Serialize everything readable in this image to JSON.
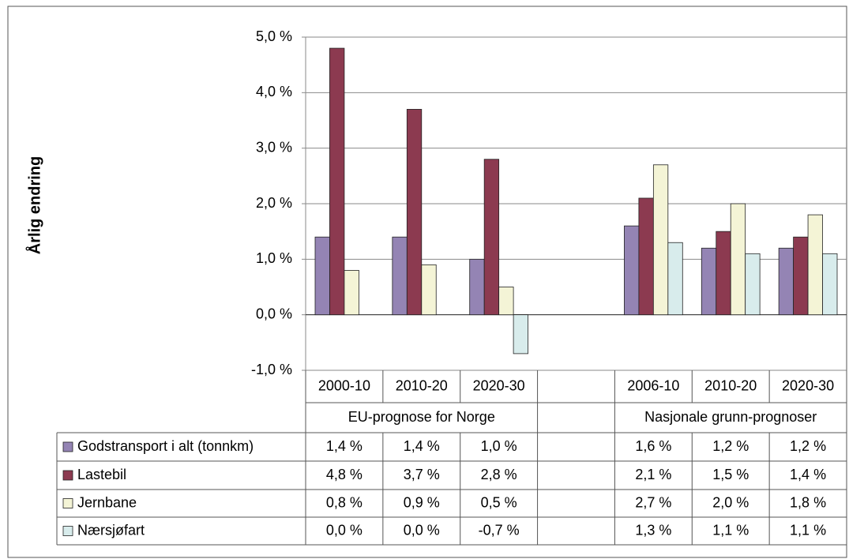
{
  "chart_data": {
    "type": "bar",
    "y_label": "Årlig endring",
    "categories": [
      "2000-10",
      "2010-20",
      "2020-30",
      null,
      "2006-10",
      "2010-20",
      "2020-30"
    ],
    "groups": [
      "EU-prognose for Norge",
      "Nasjonale grunn-prognoser"
    ],
    "ylim": [
      -1,
      5
    ],
    "yticks": [
      {
        "value": -1,
        "label": "-1,0 %"
      },
      {
        "value": 0,
        "label": "0,0 %"
      },
      {
        "value": 1,
        "label": "1,0 %"
      },
      {
        "value": 2,
        "label": "2,0 %"
      },
      {
        "value": 3,
        "label": "3,0 %"
      },
      {
        "value": 4,
        "label": "4,0 %"
      },
      {
        "value": 5,
        "label": "5,0 %"
      }
    ],
    "grid": true,
    "series": [
      {
        "name": "Godstransport i alt (tonnkm)",
        "color": "#9484b4",
        "values": [
          1.4,
          1.4,
          1.0,
          null,
          1.6,
          1.2,
          1.2
        ],
        "value_labels": [
          "1,4 %",
          "1,4 %",
          "1,0 %",
          null,
          "1,6 %",
          "1,2 %",
          "1,2 %"
        ]
      },
      {
        "name": "Lastebil",
        "color": "#8c3a50",
        "values": [
          4.8,
          3.7,
          2.8,
          null,
          2.1,
          1.5,
          1.4
        ],
        "value_labels": [
          "4,8 %",
          "3,7 %",
          "2,8 %",
          null,
          "2,1 %",
          "1,5 %",
          "1,4 %"
        ]
      },
      {
        "name": "Jernbane",
        "color": "#f4f4d6",
        "values": [
          0.8,
          0.9,
          0.5,
          null,
          2.7,
          2.0,
          1.8
        ],
        "value_labels": [
          "0,8 %",
          "0,9 %",
          "0,5 %",
          null,
          "2,7 %",
          "2,0 %",
          "1,8 %"
        ]
      },
      {
        "name": "Nærsjøfart",
        "color": "#d8ecec",
        "values": [
          0.0,
          0.0,
          -0.7,
          null,
          1.3,
          1.1,
          1.1
        ],
        "value_labels": [
          "0,0 %",
          "0,0 %",
          "-0,7 %",
          null,
          "1,3 %",
          "1,1 %",
          "1,1 %"
        ]
      }
    ]
  }
}
